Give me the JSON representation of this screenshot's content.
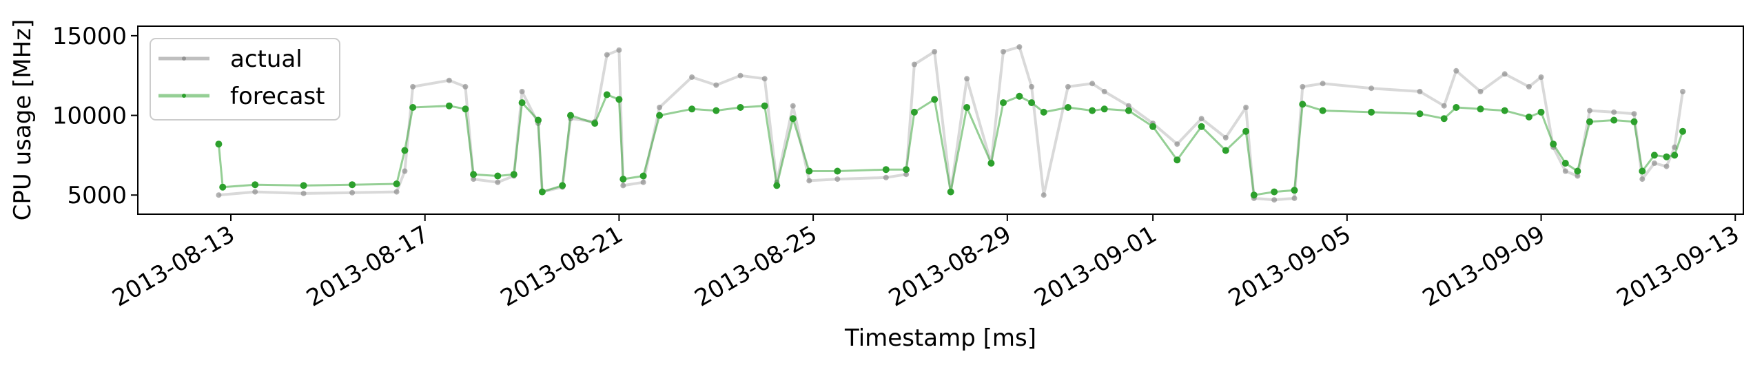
{
  "chart_data": {
    "type": "line",
    "title": "",
    "xlabel": "Timestamp [ms]",
    "ylabel": "CPU usage [MHz]",
    "xlim": [
      "2013-08-11T02:00",
      "2013-09-13T04:00"
    ],
    "ylim": [
      3800,
      15600
    ],
    "grid": false,
    "legend_position": "top-left",
    "x_ticks": [
      "2013-08-13",
      "2013-08-17",
      "2013-08-21",
      "2013-08-25",
      "2013-08-29",
      "2013-09-01",
      "2013-09-05",
      "2013-09-09",
      "2013-09-13"
    ],
    "y_ticks": [
      5000,
      10000,
      15000
    ],
    "y_tick_labels": [
      "5000",
      "10000",
      "15000"
    ],
    "series": [
      {
        "name": "actual",
        "color": "#808080",
        "points": [
          [
            "2013-08-12T18:00",
            5000
          ],
          [
            "2013-08-13T12:00",
            5200
          ],
          [
            "2013-08-14T12:00",
            5100
          ],
          [
            "2013-08-15T12:00",
            5150
          ],
          [
            "2013-08-16T10:00",
            5200
          ],
          [
            "2013-08-16T14:00",
            6500
          ],
          [
            "2013-08-16T18:00",
            11800
          ],
          [
            "2013-08-17T12:00",
            12200
          ],
          [
            "2013-08-17T20:00",
            11800
          ],
          [
            "2013-08-18T00:00",
            6000
          ],
          [
            "2013-08-18T12:00",
            5800
          ],
          [
            "2013-08-18T20:00",
            6200
          ],
          [
            "2013-08-19T00:00",
            11500
          ],
          [
            "2013-08-19T08:00",
            9500
          ],
          [
            "2013-08-19T10:00",
            5200
          ],
          [
            "2013-08-19T20:00",
            5500
          ],
          [
            "2013-08-20T00:00",
            9800
          ],
          [
            "2013-08-20T12:00",
            9600
          ],
          [
            "2013-08-20T18:00",
            13800
          ],
          [
            "2013-08-21T00:00",
            14100
          ],
          [
            "2013-08-21T02:00",
            5600
          ],
          [
            "2013-08-21T12:00",
            5800
          ],
          [
            "2013-08-21T20:00",
            10500
          ],
          [
            "2013-08-22T12:00",
            12400
          ],
          [
            "2013-08-23T00:00",
            11900
          ],
          [
            "2013-08-23T12:00",
            12500
          ],
          [
            "2013-08-24T00:00",
            12300
          ],
          [
            "2013-08-24T06:00",
            5800
          ],
          [
            "2013-08-24T14:00",
            10600
          ],
          [
            "2013-08-24T22:00",
            5900
          ],
          [
            "2013-08-25T12:00",
            6000
          ],
          [
            "2013-08-26T12:00",
            6100
          ],
          [
            "2013-08-26T22:00",
            6300
          ],
          [
            "2013-08-27T02:00",
            13200
          ],
          [
            "2013-08-27T12:00",
            14000
          ],
          [
            "2013-08-27T20:00",
            5200
          ],
          [
            "2013-08-28T04:00",
            12300
          ],
          [
            "2013-08-28T16:00",
            7000
          ],
          [
            "2013-08-28T22:00",
            14000
          ],
          [
            "2013-08-29T06:00",
            14300
          ],
          [
            "2013-08-29T12:00",
            11800
          ],
          [
            "2013-08-29T18:00",
            5000
          ],
          [
            "2013-08-30T06:00",
            11800
          ],
          [
            "2013-08-30T18:00",
            12000
          ],
          [
            "2013-08-31T00:00",
            11500
          ],
          [
            "2013-08-31T12:00",
            10600
          ],
          [
            "2013-09-01T00:00",
            9500
          ],
          [
            "2013-09-01T12:00",
            8200
          ],
          [
            "2013-09-02T00:00",
            9800
          ],
          [
            "2013-09-02T12:00",
            8600
          ],
          [
            "2013-09-02T22:00",
            10500
          ],
          [
            "2013-09-03T02:00",
            4800
          ],
          [
            "2013-09-03T12:00",
            4700
          ],
          [
            "2013-09-03T22:00",
            4800
          ],
          [
            "2013-09-04T02:00",
            11800
          ],
          [
            "2013-09-04T12:00",
            12000
          ],
          [
            "2013-09-05T12:00",
            11700
          ],
          [
            "2013-09-06T12:00",
            11500
          ],
          [
            "2013-09-07T00:00",
            10600
          ],
          [
            "2013-09-07T06:00",
            12800
          ],
          [
            "2013-09-07T18:00",
            11500
          ],
          [
            "2013-09-08T06:00",
            12600
          ],
          [
            "2013-09-08T18:00",
            11800
          ],
          [
            "2013-09-09T00:00",
            12400
          ],
          [
            "2013-09-09T06:00",
            8000
          ],
          [
            "2013-09-09T12:00",
            6500
          ],
          [
            "2013-09-09T18:00",
            6200
          ],
          [
            "2013-09-10T00:00",
            10300
          ],
          [
            "2013-09-10T12:00",
            10200
          ],
          [
            "2013-09-10T22:00",
            10100
          ],
          [
            "2013-09-11T02:00",
            6000
          ],
          [
            "2013-09-11T08:00",
            7000
          ],
          [
            "2013-09-11T14:00",
            6800
          ],
          [
            "2013-09-11T18:00",
            8000
          ],
          [
            "2013-09-11T22:00",
            11500
          ]
        ]
      },
      {
        "name": "forecast",
        "color": "#2ca02c",
        "points": [
          [
            "2013-08-12T18:00",
            8200
          ],
          [
            "2013-08-12T20:00",
            5500
          ],
          [
            "2013-08-13T12:00",
            5650
          ],
          [
            "2013-08-14T12:00",
            5600
          ],
          [
            "2013-08-15T12:00",
            5650
          ],
          [
            "2013-08-16T10:00",
            5700
          ],
          [
            "2013-08-16T14:00",
            7800
          ],
          [
            "2013-08-16T18:00",
            10500
          ],
          [
            "2013-08-17T12:00",
            10600
          ],
          [
            "2013-08-17T20:00",
            10400
          ],
          [
            "2013-08-18T00:00",
            6300
          ],
          [
            "2013-08-18T12:00",
            6200
          ],
          [
            "2013-08-18T20:00",
            6300
          ],
          [
            "2013-08-19T00:00",
            10800
          ],
          [
            "2013-08-19T08:00",
            9700
          ],
          [
            "2013-08-19T10:00",
            5200
          ],
          [
            "2013-08-19T20:00",
            5600
          ],
          [
            "2013-08-20T00:00",
            10000
          ],
          [
            "2013-08-20T12:00",
            9500
          ],
          [
            "2013-08-20T18:00",
            11300
          ],
          [
            "2013-08-21T00:00",
            11000
          ],
          [
            "2013-08-21T02:00",
            6000
          ],
          [
            "2013-08-21T12:00",
            6200
          ],
          [
            "2013-08-21T20:00",
            10000
          ],
          [
            "2013-08-22T12:00",
            10400
          ],
          [
            "2013-08-23T00:00",
            10300
          ],
          [
            "2013-08-23T12:00",
            10500
          ],
          [
            "2013-08-24T00:00",
            10600
          ],
          [
            "2013-08-24T06:00",
            5600
          ],
          [
            "2013-08-24T14:00",
            9800
          ],
          [
            "2013-08-24T22:00",
            6500
          ],
          [
            "2013-08-25T12:00",
            6500
          ],
          [
            "2013-08-26T12:00",
            6600
          ],
          [
            "2013-08-26T22:00",
            6600
          ],
          [
            "2013-08-27T02:00",
            10200
          ],
          [
            "2013-08-27T12:00",
            11000
          ],
          [
            "2013-08-27T20:00",
            5200
          ],
          [
            "2013-08-28T04:00",
            10500
          ],
          [
            "2013-08-28T16:00",
            7000
          ],
          [
            "2013-08-28T22:00",
            10800
          ],
          [
            "2013-08-29T06:00",
            11200
          ],
          [
            "2013-08-29T12:00",
            10800
          ],
          [
            "2013-08-29T18:00",
            10200
          ],
          [
            "2013-08-30T06:00",
            10500
          ],
          [
            "2013-08-30T18:00",
            10300
          ],
          [
            "2013-08-31T00:00",
            10400
          ],
          [
            "2013-08-31T12:00",
            10300
          ],
          [
            "2013-09-01T00:00",
            9300
          ],
          [
            "2013-09-01T12:00",
            7200
          ],
          [
            "2013-09-02T00:00",
            9300
          ],
          [
            "2013-09-02T12:00",
            7800
          ],
          [
            "2013-09-02T22:00",
            9000
          ],
          [
            "2013-09-03T02:00",
            5000
          ],
          [
            "2013-09-03T12:00",
            5200
          ],
          [
            "2013-09-03T22:00",
            5300
          ],
          [
            "2013-09-04T02:00",
            10700
          ],
          [
            "2013-09-04T12:00",
            10300
          ],
          [
            "2013-09-05T12:00",
            10200
          ],
          [
            "2013-09-06T12:00",
            10100
          ],
          [
            "2013-09-07T00:00",
            9800
          ],
          [
            "2013-09-07T06:00",
            10500
          ],
          [
            "2013-09-07T18:00",
            10400
          ],
          [
            "2013-09-08T06:00",
            10300
          ],
          [
            "2013-09-08T18:00",
            9900
          ],
          [
            "2013-09-09T00:00",
            10200
          ],
          [
            "2013-09-09T06:00",
            8200
          ],
          [
            "2013-09-09T12:00",
            7000
          ],
          [
            "2013-09-09T18:00",
            6500
          ],
          [
            "2013-09-10T00:00",
            9600
          ],
          [
            "2013-09-10T12:00",
            9700
          ],
          [
            "2013-09-10T22:00",
            9600
          ],
          [
            "2013-09-11T02:00",
            6500
          ],
          [
            "2013-09-11T08:00",
            7500
          ],
          [
            "2013-09-11T14:00",
            7400
          ],
          [
            "2013-09-11T18:00",
            7500
          ],
          [
            "2013-09-11T22:00",
            9000
          ]
        ]
      }
    ]
  }
}
